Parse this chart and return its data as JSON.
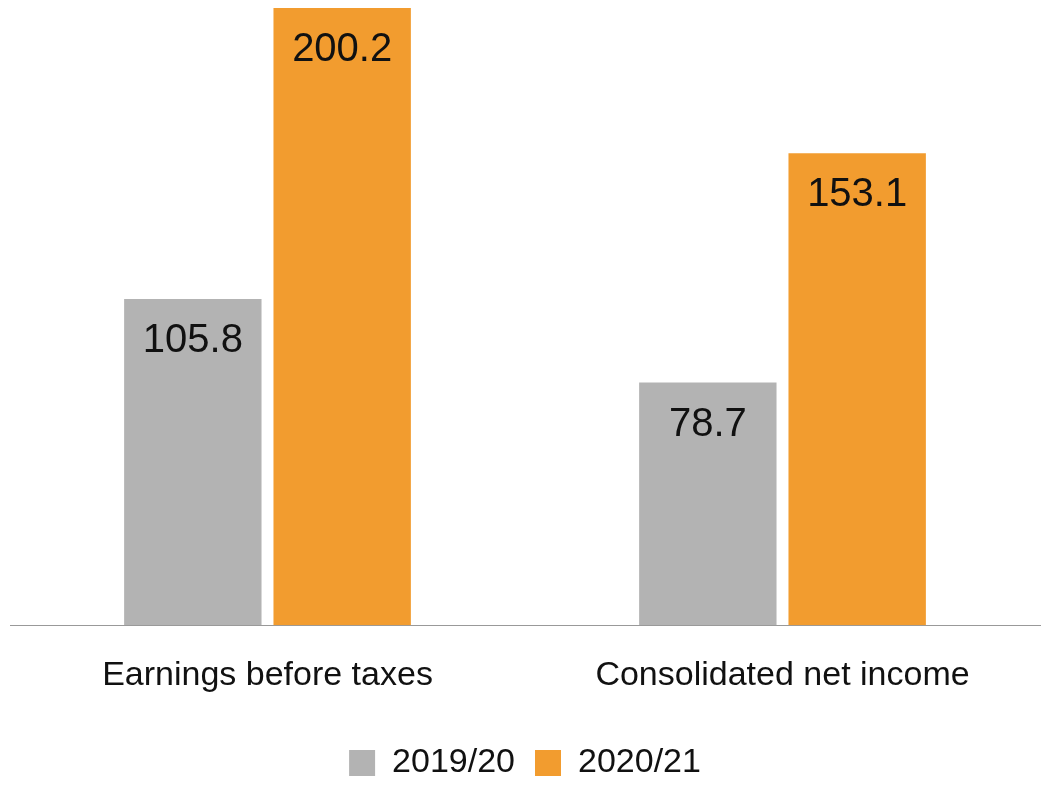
{
  "chart_data": {
    "type": "bar",
    "categories": [
      "Earnings before taxes",
      "Consolidated net income"
    ],
    "series": [
      {
        "name": "2019/20",
        "color": "#b3b3b3",
        "values": [
          105.8,
          78.7
        ]
      },
      {
        "name": "2020/21",
        "color": "#f29c2f",
        "values": [
          200.2,
          153.1
        ]
      }
    ],
    "data_labels": true,
    "legend": "bottom",
    "grid": false
  }
}
